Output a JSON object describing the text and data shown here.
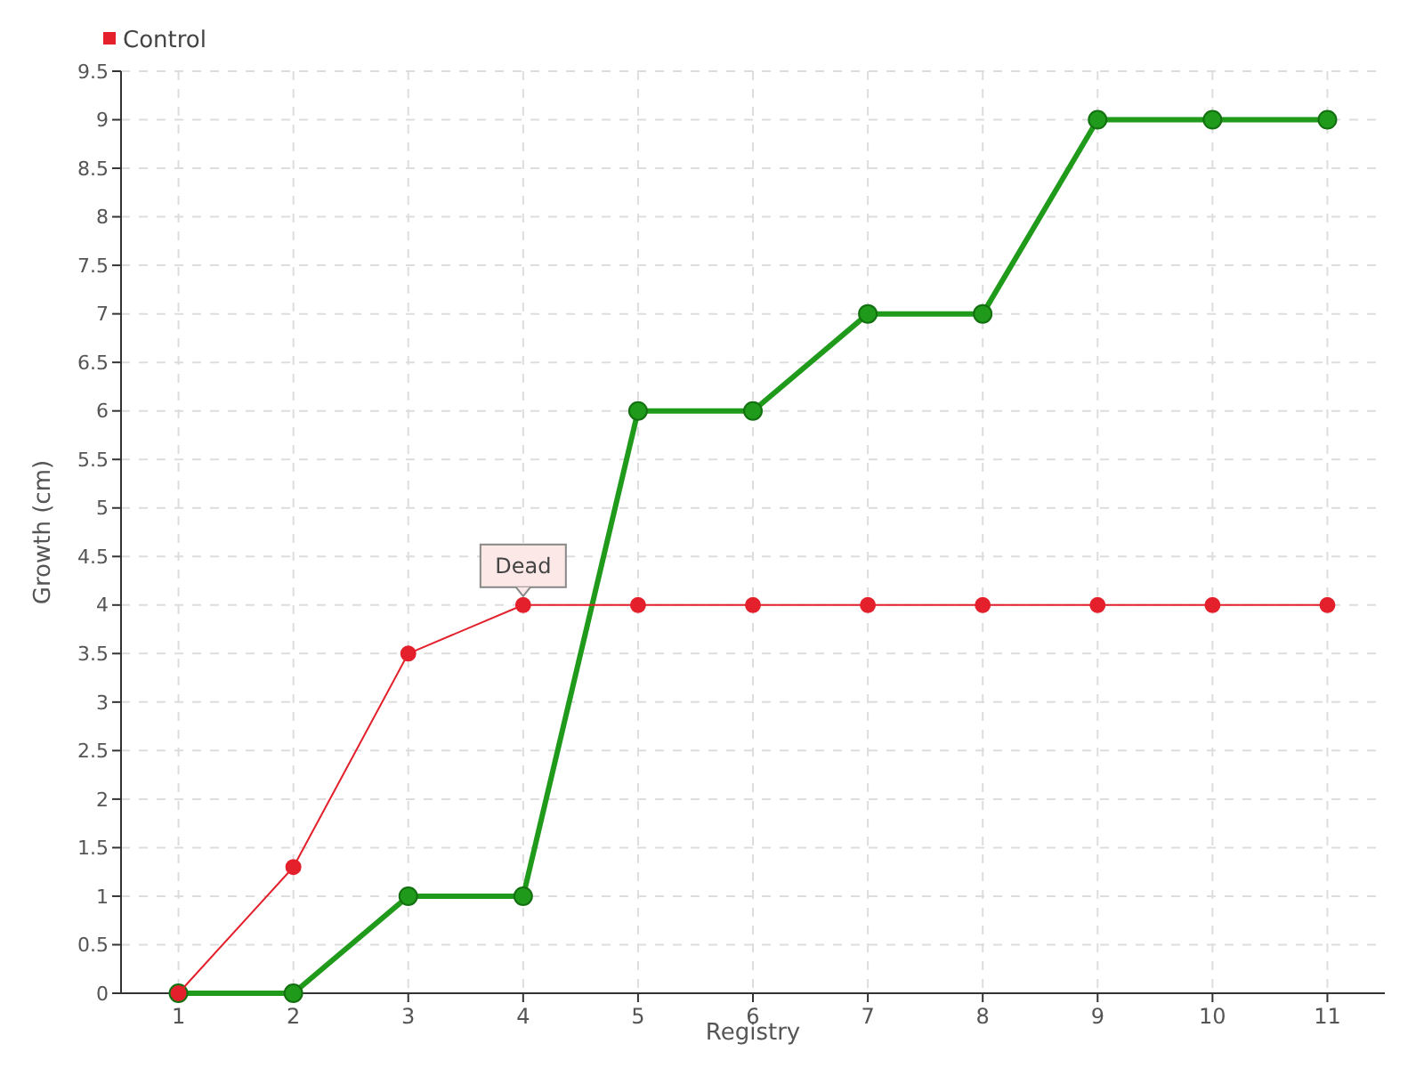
{
  "chart_data": {
    "type": "line",
    "xlabel": "Registry",
    "ylabel": "Growth (cm)",
    "categories": [
      "1",
      "2",
      "3",
      "4",
      "5",
      "6",
      "7",
      "8",
      "9",
      "10",
      "11"
    ],
    "series": [
      {
        "color": "#1f9a1a",
        "values": [
          0,
          0,
          1,
          1,
          6,
          6,
          7,
          7,
          9,
          9,
          9
        ]
      },
      {
        "name": "Control",
        "color": "#e3202b",
        "values": [
          0,
          1.3,
          3.5,
          4,
          4,
          4,
          4,
          4,
          4,
          4,
          4
        ]
      }
    ],
    "ylim": [
      0,
      9.5
    ],
    "yticks": [
      0,
      0.5,
      1,
      1.5,
      2,
      2.5,
      3,
      3.5,
      4,
      4.5,
      5,
      5.5,
      6,
      6.5,
      7,
      7.5,
      8,
      8.5,
      9,
      9.5
    ],
    "grid": true,
    "legend": "top left",
    "marker": "circle",
    "line_style": "solid",
    "annotations": [
      {
        "text": "Dead",
        "x": "4",
        "y": 4
      }
    ]
  }
}
